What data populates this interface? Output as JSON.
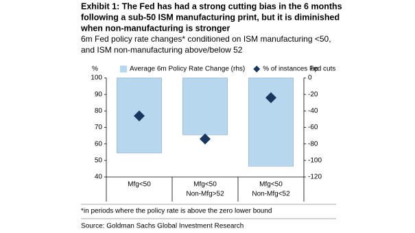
{
  "chart_data": {
    "type": "bar-diamond",
    "title": [
      "Exhibit 1: The Fed has had a strong cutting bias in the 6 months",
      "following a sub-50 ISM manufacturing print, but it is diminished",
      "when non-manufacturing is stronger"
    ],
    "subtitle": [
      "6m Fed policy rate changes* conditioned on ISM manufacturing <50,",
      "and ISM non-manufacturing above/below 52"
    ],
    "y_label": "%",
    "y2_label": "bp",
    "categories": [
      [
        "Mfg<50"
      ],
      [
        "Mfg<50",
        "Non-Mfg>52"
      ],
      [
        "Mfg<50",
        "Non-Mfg<52"
      ]
    ],
    "series": [
      {
        "name": "Average 6m Policy Rate Change (rhs)",
        "color": "#b7d7ef",
        "axis": "y2",
        "kind": "bar",
        "values": [
          -91,
          -69,
          -107
        ]
      },
      {
        "name": "% of instances Fed cuts",
        "color": "#17375e",
        "axis": "y",
        "kind": "diamond",
        "values": [
          77,
          63,
          88
        ]
      }
    ],
    "ylim": [
      40,
      100
    ],
    "yticks": [
      40,
      50,
      60,
      70,
      80,
      90,
      100
    ],
    "y2lim": [
      -120,
      0
    ],
    "y2ticks": [
      -120,
      -100,
      -80,
      -60,
      -40,
      -20,
      0
    ],
    "footnote": "*in periods where the policy rate is above the zero lower bound",
    "source": "Source: Goldman Sachs Global Investment Research"
  }
}
